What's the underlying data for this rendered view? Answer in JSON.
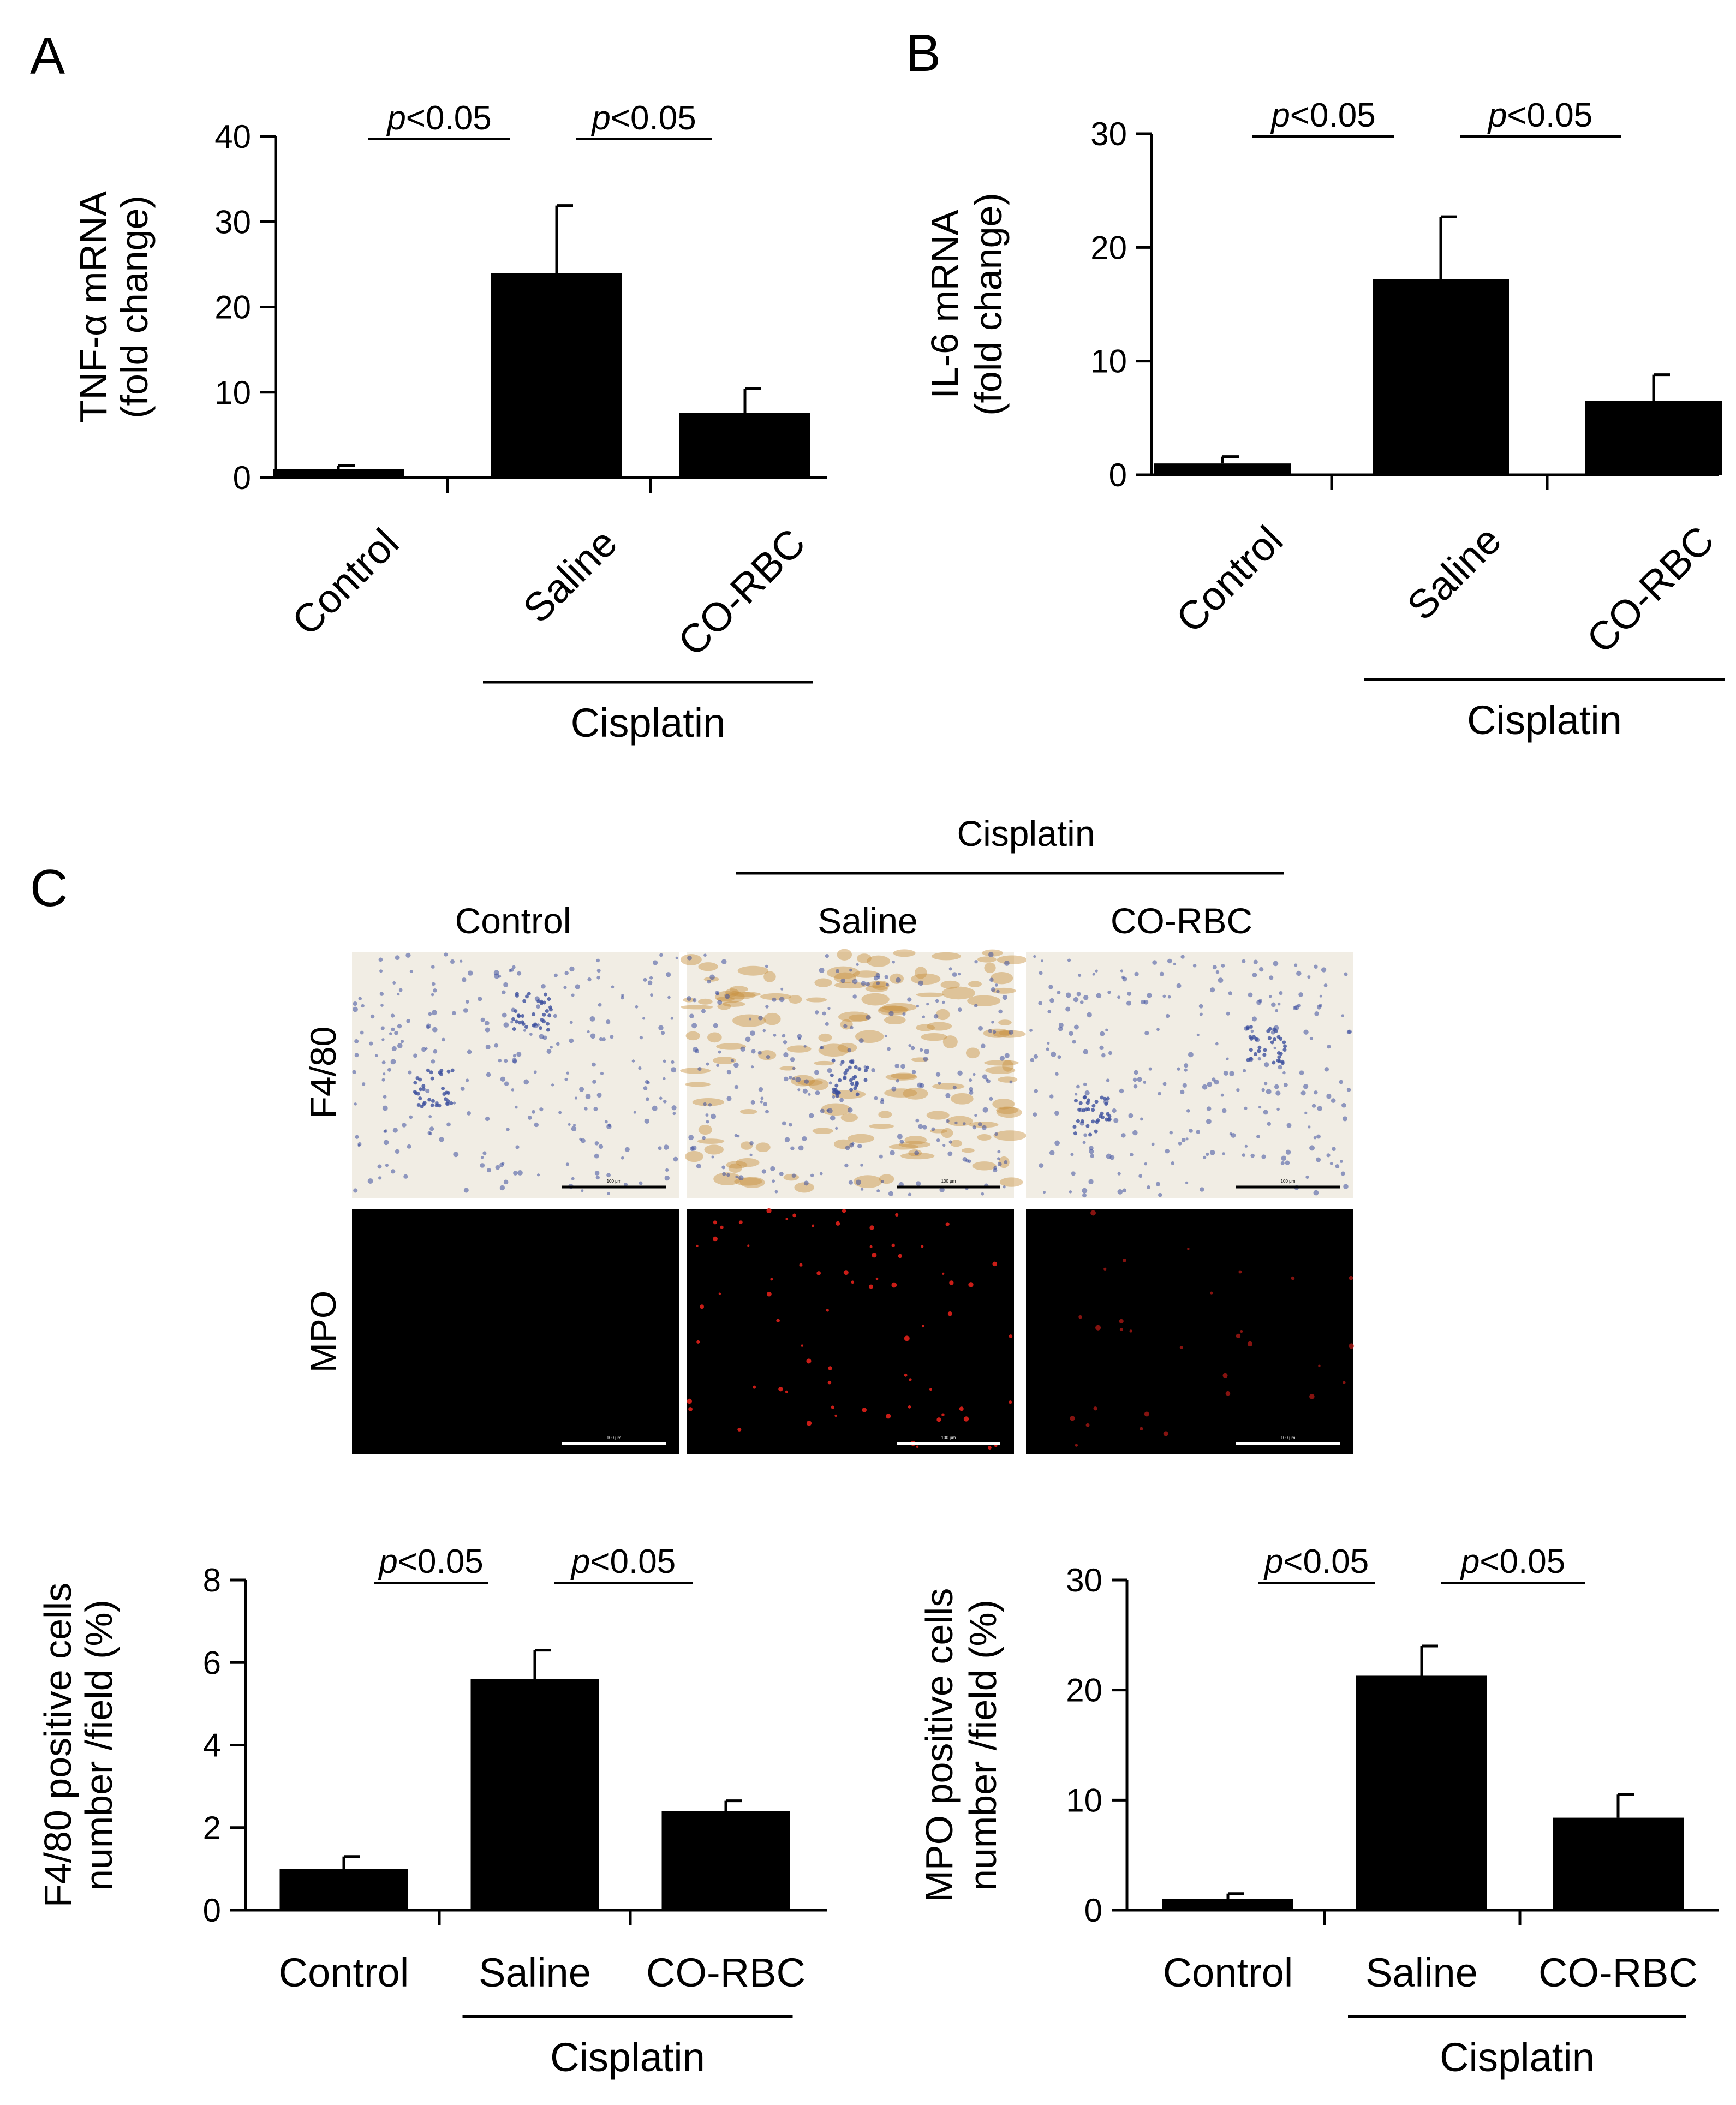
{
  "chart_data": [
    {
      "panel": "A",
      "type": "bar",
      "categories": [
        "Control",
        "Saline",
        "CO-RBC"
      ],
      "values": [
        1.0,
        24.0,
        7.6
      ],
      "errors": [
        0.4,
        7.9,
        2.8
      ],
      "ylabel_lines": [
        "TNF-α mRNA",
        "(fold change)"
      ],
      "yticks": [
        "0",
        "10",
        "20",
        "30",
        "40"
      ],
      "ylim": [
        0,
        40
      ],
      "rotated_labels": true,
      "group_label": "Cisplatin",
      "group_span": [
        1,
        2
      ],
      "significance": [
        {
          "from": 0,
          "to": 1,
          "italic": "p",
          "text": "<0.05"
        },
        {
          "from": 1,
          "to": 2,
          "italic": "p",
          "text": "<0.05"
        }
      ]
    },
    {
      "panel": "B",
      "type": "bar",
      "categories": [
        "Control",
        "Saline",
        "CO-RBC"
      ],
      "values": [
        1.0,
        17.2,
        6.5
      ],
      "errors": [
        0.6,
        5.5,
        2.3
      ],
      "ylabel_lines": [
        "IL-6 mRNA",
        "(fold change)"
      ],
      "yticks": [
        "0",
        "10",
        "20",
        "30"
      ],
      "ylim": [
        0,
        30
      ],
      "rotated_labels": true,
      "group_label": "Cisplatin",
      "group_span": [
        1,
        2
      ],
      "significance": [
        {
          "from": 0,
          "to": 1,
          "italic": "p",
          "text": "<0.05"
        },
        {
          "from": 1,
          "to": 2,
          "italic": "p",
          "text": "<0.05"
        }
      ]
    },
    {
      "panel": "C-left",
      "type": "bar",
      "categories": [
        "Control",
        "Saline",
        "CO-RBC"
      ],
      "values": [
        1.0,
        5.6,
        2.4
      ],
      "errors": [
        0.3,
        0.7,
        0.25
      ],
      "ylabel_lines": [
        "F4/80 positive cells",
        "number /field (%)"
      ],
      "yticks": [
        "0",
        "2",
        "4",
        "6",
        "8"
      ],
      "ylim": [
        0,
        8
      ],
      "rotated_labels": false,
      "group_label": "Cisplatin",
      "group_span": [
        1,
        2
      ],
      "significance": [
        {
          "from": 0,
          "to": 1,
          "italic": "p",
          "text": "<0.05"
        },
        {
          "from": 1,
          "to": 2,
          "italic": "p",
          "text": "<0.05"
        }
      ]
    },
    {
      "panel": "C-right",
      "type": "bar",
      "categories": [
        "Control",
        "Saline",
        "CO-RBC"
      ],
      "values": [
        1.0,
        21.3,
        8.4
      ],
      "errors": [
        0.5,
        2.7,
        2.1
      ],
      "ylabel_lines": [
        "MPO positive cells",
        "number /field (%)"
      ],
      "yticks": [
        "0",
        "10",
        "20",
        "30"
      ],
      "ylim": [
        0,
        30
      ],
      "rotated_labels": false,
      "group_label": "Cisplatin",
      "group_span": [
        1,
        2
      ],
      "significance": [
        {
          "from": 0,
          "to": 1,
          "italic": "p",
          "text": "<0.05"
        },
        {
          "from": 1,
          "to": 2,
          "italic": "p",
          "text": "<0.05"
        }
      ]
    }
  ],
  "panel_letters": [
    "A",
    "B",
    "C"
  ],
  "micrographs": {
    "group_label": "Cisplatin",
    "columns": [
      "Control",
      "Saline",
      "CO-RBC"
    ],
    "rows": [
      "F4/80",
      "MPO"
    ],
    "scale_bar_text": "100 μm"
  },
  "colors": {
    "bar": "#000000",
    "axis": "#000000",
    "mpo_background": "#000000",
    "mpo_signal": "#e0201a",
    "ihc_background": "#f1ede4",
    "ihc_nuclei": "#3c4f9e",
    "ihc_dab": "#c8903f"
  }
}
